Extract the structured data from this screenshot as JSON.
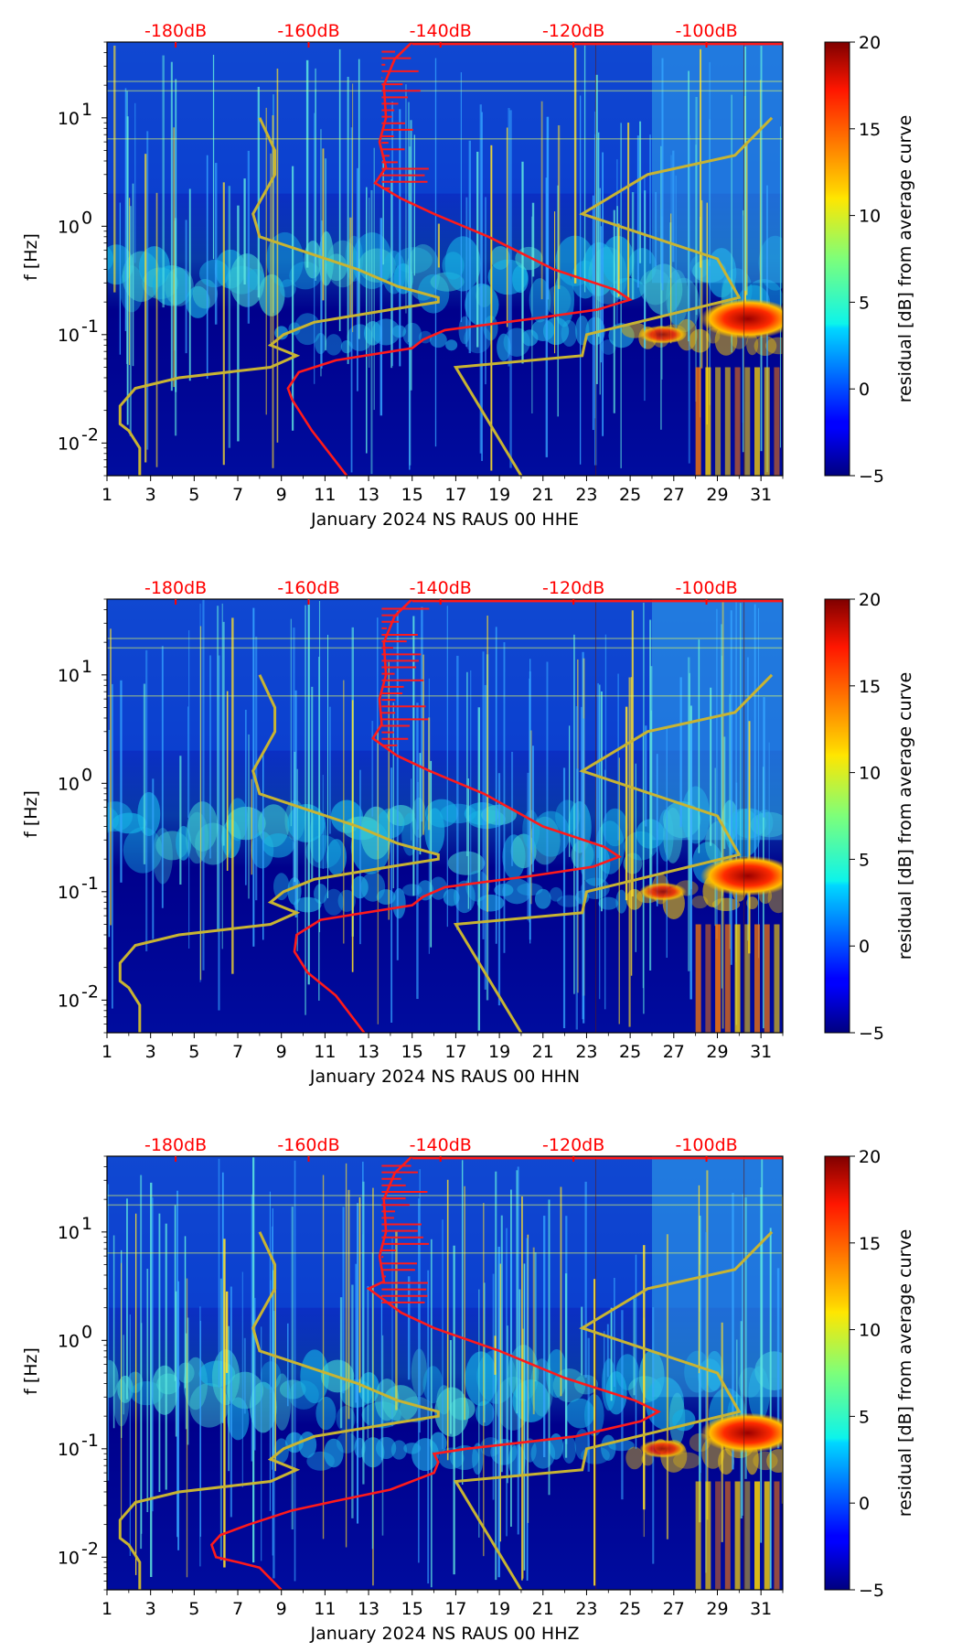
{
  "figure": {
    "colormap": "jet",
    "colors": {
      "db_text": "#ff0000",
      "ref_curve": "#c8b432",
      "avg_curve": "#ff1a1a"
    }
  },
  "chart_data": [
    {
      "type": "heatmap",
      "title": "",
      "xlabel": "January 2024 NS RAUS 00 HHE",
      "ylabel": "f [Hz]",
      "x_ticks": [
        "1",
        "3",
        "5",
        "7",
        "9",
        "11",
        "13",
        "15",
        "17",
        "19",
        "21",
        "23",
        "25",
        "27",
        "29",
        "31"
      ],
      "x_range": [
        1,
        32
      ],
      "y_scale": "log",
      "y_range": [
        0.005,
        50
      ],
      "y_ticks": [
        {
          "label": "10",
          "exp": "-2",
          "value": 0.01
        },
        {
          "label": "10",
          "exp": "-1",
          "value": 0.1
        },
        {
          "label": "10",
          "exp": "0",
          "value": 1
        },
        {
          "label": "10",
          "exp": "1",
          "value": 10
        }
      ],
      "top_ticks": [
        {
          "label": "-180dB",
          "day": 4.15
        },
        {
          "label": "-160dB",
          "day": 10.25
        },
        {
          "label": "-140dB",
          "day": 16.3
        },
        {
          "label": "-120dB",
          "day": 22.4
        },
        {
          "label": "-100dB",
          "day": 28.5
        }
      ],
      "colorbar": {
        "label": "residual [dB] from average curve",
        "min": -5,
        "max": 20,
        "ticks": [
          "20",
          "15",
          "10",
          "5",
          "0",
          "−5"
        ]
      },
      "ref_curve": [
        [
          2.5,
          0.005
        ],
        [
          2.5,
          0.009
        ],
        [
          2.0,
          0.013
        ],
        [
          1.6,
          0.015
        ],
        [
          1.6,
          0.022
        ],
        [
          2.3,
          0.032
        ],
        [
          4.3,
          0.04
        ],
        [
          8.5,
          0.05
        ],
        [
          9.7,
          0.064
        ],
        [
          8.5,
          0.08
        ],
        [
          9.1,
          0.1
        ],
        [
          10.5,
          0.13
        ],
        [
          14.0,
          0.17
        ],
        [
          16.2,
          0.2
        ],
        [
          16.2,
          0.22
        ],
        [
          14.3,
          0.28
        ],
        [
          12.5,
          0.4
        ],
        [
          8.0,
          0.8
        ],
        [
          7.7,
          1.3
        ],
        [
          8.7,
          3.0
        ],
        [
          8.7,
          5.0
        ],
        [
          8.0,
          10.0
        ]
      ],
      "ref_curve_2": [
        [
          20.0,
          0.005
        ],
        [
          17.0,
          0.05
        ],
        [
          22.8,
          0.064
        ],
        [
          23.0,
          0.1
        ],
        [
          30.0,
          0.22
        ],
        [
          29.0,
          0.5
        ],
        [
          22.8,
          1.3
        ],
        [
          25.8,
          3.0
        ],
        [
          29.8,
          4.5
        ],
        [
          31.5,
          10.0
        ]
      ],
      "avg_curve": [
        [
          12.0,
          0.005
        ],
        [
          10.4,
          0.013
        ],
        [
          9.5,
          0.025
        ],
        [
          9.3,
          0.032
        ],
        [
          9.8,
          0.045
        ],
        [
          11.5,
          0.058
        ],
        [
          15.0,
          0.075
        ],
        [
          15.5,
          0.09
        ],
        [
          16.5,
          0.11
        ],
        [
          20.5,
          0.14
        ],
        [
          23.5,
          0.17
        ],
        [
          25.0,
          0.21
        ],
        [
          24.3,
          0.26
        ],
        [
          21.5,
          0.4
        ],
        [
          18.5,
          0.8
        ],
        [
          16.0,
          1.3
        ],
        [
          14.5,
          1.8
        ],
        [
          13.3,
          2.5
        ],
        [
          13.8,
          3.5
        ],
        [
          13.5,
          6.0
        ],
        [
          13.8,
          10.0
        ],
        [
          13.7,
          20.0
        ],
        [
          14.2,
          35.0
        ],
        [
          15.0,
          50.0
        ]
      ]
    },
    {
      "type": "heatmap",
      "title": "",
      "xlabel": "January 2024 NS RAUS 00 HHN",
      "ylabel": "f [Hz]",
      "x_ticks": [
        "1",
        "3",
        "5",
        "7",
        "9",
        "11",
        "13",
        "15",
        "17",
        "19",
        "21",
        "23",
        "25",
        "27",
        "29",
        "31"
      ],
      "x_range": [
        1,
        32
      ],
      "y_scale": "log",
      "y_range": [
        0.005,
        50
      ],
      "y_ticks": [
        {
          "label": "10",
          "exp": "-2",
          "value": 0.01
        },
        {
          "label": "10",
          "exp": "-1",
          "value": 0.1
        },
        {
          "label": "10",
          "exp": "0",
          "value": 1
        },
        {
          "label": "10",
          "exp": "1",
          "value": 10
        }
      ],
      "top_ticks": [
        {
          "label": "-180dB",
          "day": 4.15
        },
        {
          "label": "-160dB",
          "day": 10.25
        },
        {
          "label": "-140dB",
          "day": 16.3
        },
        {
          "label": "-120dB",
          "day": 22.4
        },
        {
          "label": "-100dB",
          "day": 28.5
        }
      ],
      "colorbar": {
        "label": "residual [dB] from average curve",
        "min": -5,
        "max": 20,
        "ticks": [
          "20",
          "15",
          "10",
          "5",
          "0",
          "−5"
        ]
      },
      "ref_curve": [
        [
          2.5,
          0.005
        ],
        [
          2.5,
          0.009
        ],
        [
          2.0,
          0.013
        ],
        [
          1.6,
          0.015
        ],
        [
          1.6,
          0.022
        ],
        [
          2.3,
          0.032
        ],
        [
          4.3,
          0.04
        ],
        [
          8.5,
          0.05
        ],
        [
          9.7,
          0.064
        ],
        [
          8.5,
          0.08
        ],
        [
          9.1,
          0.1
        ],
        [
          10.5,
          0.13
        ],
        [
          14.0,
          0.17
        ],
        [
          16.2,
          0.2
        ],
        [
          16.2,
          0.22
        ],
        [
          14.3,
          0.28
        ],
        [
          12.5,
          0.4
        ],
        [
          8.0,
          0.8
        ],
        [
          7.7,
          1.3
        ],
        [
          8.7,
          3.0
        ],
        [
          8.7,
          5.0
        ],
        [
          8.0,
          10.0
        ]
      ],
      "ref_curve_2": [
        [
          20.0,
          0.005
        ],
        [
          17.0,
          0.05
        ],
        [
          22.8,
          0.064
        ],
        [
          23.0,
          0.1
        ],
        [
          30.0,
          0.22
        ],
        [
          29.0,
          0.5
        ],
        [
          22.8,
          1.3
        ],
        [
          25.8,
          3.0
        ],
        [
          29.8,
          4.5
        ],
        [
          31.5,
          10.0
        ]
      ],
      "avg_curve": [
        [
          12.8,
          0.005
        ],
        [
          11.5,
          0.011
        ],
        [
          10.2,
          0.018
        ],
        [
          9.6,
          0.028
        ],
        [
          9.7,
          0.04
        ],
        [
          10.8,
          0.055
        ],
        [
          15.0,
          0.075
        ],
        [
          15.5,
          0.09
        ],
        [
          16.5,
          0.11
        ],
        [
          20.5,
          0.14
        ],
        [
          23.3,
          0.17
        ],
        [
          24.5,
          0.21
        ],
        [
          23.8,
          0.26
        ],
        [
          21.0,
          0.4
        ],
        [
          18.3,
          0.8
        ],
        [
          15.8,
          1.3
        ],
        [
          14.3,
          1.8
        ],
        [
          13.2,
          2.6
        ],
        [
          13.6,
          3.5
        ],
        [
          13.5,
          6.0
        ],
        [
          13.8,
          10.0
        ],
        [
          13.7,
          20.0
        ],
        [
          14.2,
          35.0
        ],
        [
          15.0,
          50.0
        ]
      ]
    },
    {
      "type": "heatmap",
      "title": "",
      "xlabel": "January 2024 NS RAUS 00 HHZ",
      "ylabel": "f [Hz]",
      "x_ticks": [
        "1",
        "3",
        "5",
        "7",
        "9",
        "11",
        "13",
        "15",
        "17",
        "19",
        "21",
        "23",
        "25",
        "27",
        "29",
        "31"
      ],
      "x_range": [
        1,
        32
      ],
      "y_scale": "log",
      "y_range": [
        0.005,
        50
      ],
      "y_ticks": [
        {
          "label": "10",
          "exp": "-2",
          "value": 0.01
        },
        {
          "label": "10",
          "exp": "-1",
          "value": 0.1
        },
        {
          "label": "10",
          "exp": "0",
          "value": 1
        },
        {
          "label": "10",
          "exp": "1",
          "value": 10
        }
      ],
      "top_ticks": [
        {
          "label": "-180dB",
          "day": 4.15
        },
        {
          "label": "-160dB",
          "day": 10.25
        },
        {
          "label": "-140dB",
          "day": 16.3
        },
        {
          "label": "-120dB",
          "day": 22.4
        },
        {
          "label": "-100dB",
          "day": 28.5
        }
      ],
      "colorbar": {
        "label": "residual [dB] from average curve",
        "min": -5,
        "max": 20,
        "ticks": [
          "20",
          "15",
          "10",
          "5",
          "0",
          "−5"
        ]
      },
      "ref_curve": [
        [
          2.5,
          0.005
        ],
        [
          2.5,
          0.009
        ],
        [
          2.0,
          0.013
        ],
        [
          1.6,
          0.015
        ],
        [
          1.6,
          0.022
        ],
        [
          2.3,
          0.032
        ],
        [
          4.3,
          0.04
        ],
        [
          8.5,
          0.05
        ],
        [
          9.7,
          0.064
        ],
        [
          8.5,
          0.08
        ],
        [
          9.1,
          0.1
        ],
        [
          10.5,
          0.13
        ],
        [
          14.0,
          0.17
        ],
        [
          16.2,
          0.2
        ],
        [
          16.2,
          0.22
        ],
        [
          14.3,
          0.28
        ],
        [
          12.5,
          0.4
        ],
        [
          8.0,
          0.8
        ],
        [
          7.7,
          1.3
        ],
        [
          8.7,
          3.0
        ],
        [
          8.7,
          5.0
        ],
        [
          8.0,
          10.0
        ]
      ],
      "ref_curve_2": [
        [
          20.0,
          0.005
        ],
        [
          17.0,
          0.05
        ],
        [
          22.8,
          0.064
        ],
        [
          23.0,
          0.1
        ],
        [
          30.0,
          0.22
        ],
        [
          29.0,
          0.5
        ],
        [
          22.8,
          1.3
        ],
        [
          25.8,
          3.0
        ],
        [
          29.8,
          4.5
        ],
        [
          31.5,
          10.0
        ]
      ],
      "avg_curve": [
        [
          9.0,
          0.005
        ],
        [
          8.0,
          0.008
        ],
        [
          7.0,
          0.009
        ],
        [
          6.0,
          0.01
        ],
        [
          5.8,
          0.013
        ],
        [
          6.2,
          0.016
        ],
        [
          7.5,
          0.02
        ],
        [
          9.5,
          0.027
        ],
        [
          11.5,
          0.033
        ],
        [
          14.0,
          0.042
        ],
        [
          16.0,
          0.06
        ],
        [
          16.2,
          0.075
        ],
        [
          16.0,
          0.09
        ],
        [
          17.5,
          0.1
        ],
        [
          22.5,
          0.13
        ],
        [
          25.5,
          0.18
        ],
        [
          26.3,
          0.22
        ],
        [
          25.2,
          0.28
        ],
        [
          22.0,
          0.45
        ],
        [
          19.0,
          0.8
        ],
        [
          16.0,
          1.3
        ],
        [
          14.5,
          1.8
        ],
        [
          13.0,
          3.0
        ],
        [
          13.7,
          3.5
        ],
        [
          13.5,
          6.0
        ],
        [
          13.8,
          10.0
        ],
        [
          13.7,
          20.0
        ],
        [
          14.2,
          35.0
        ],
        [
          15.0,
          50.0
        ]
      ]
    }
  ]
}
